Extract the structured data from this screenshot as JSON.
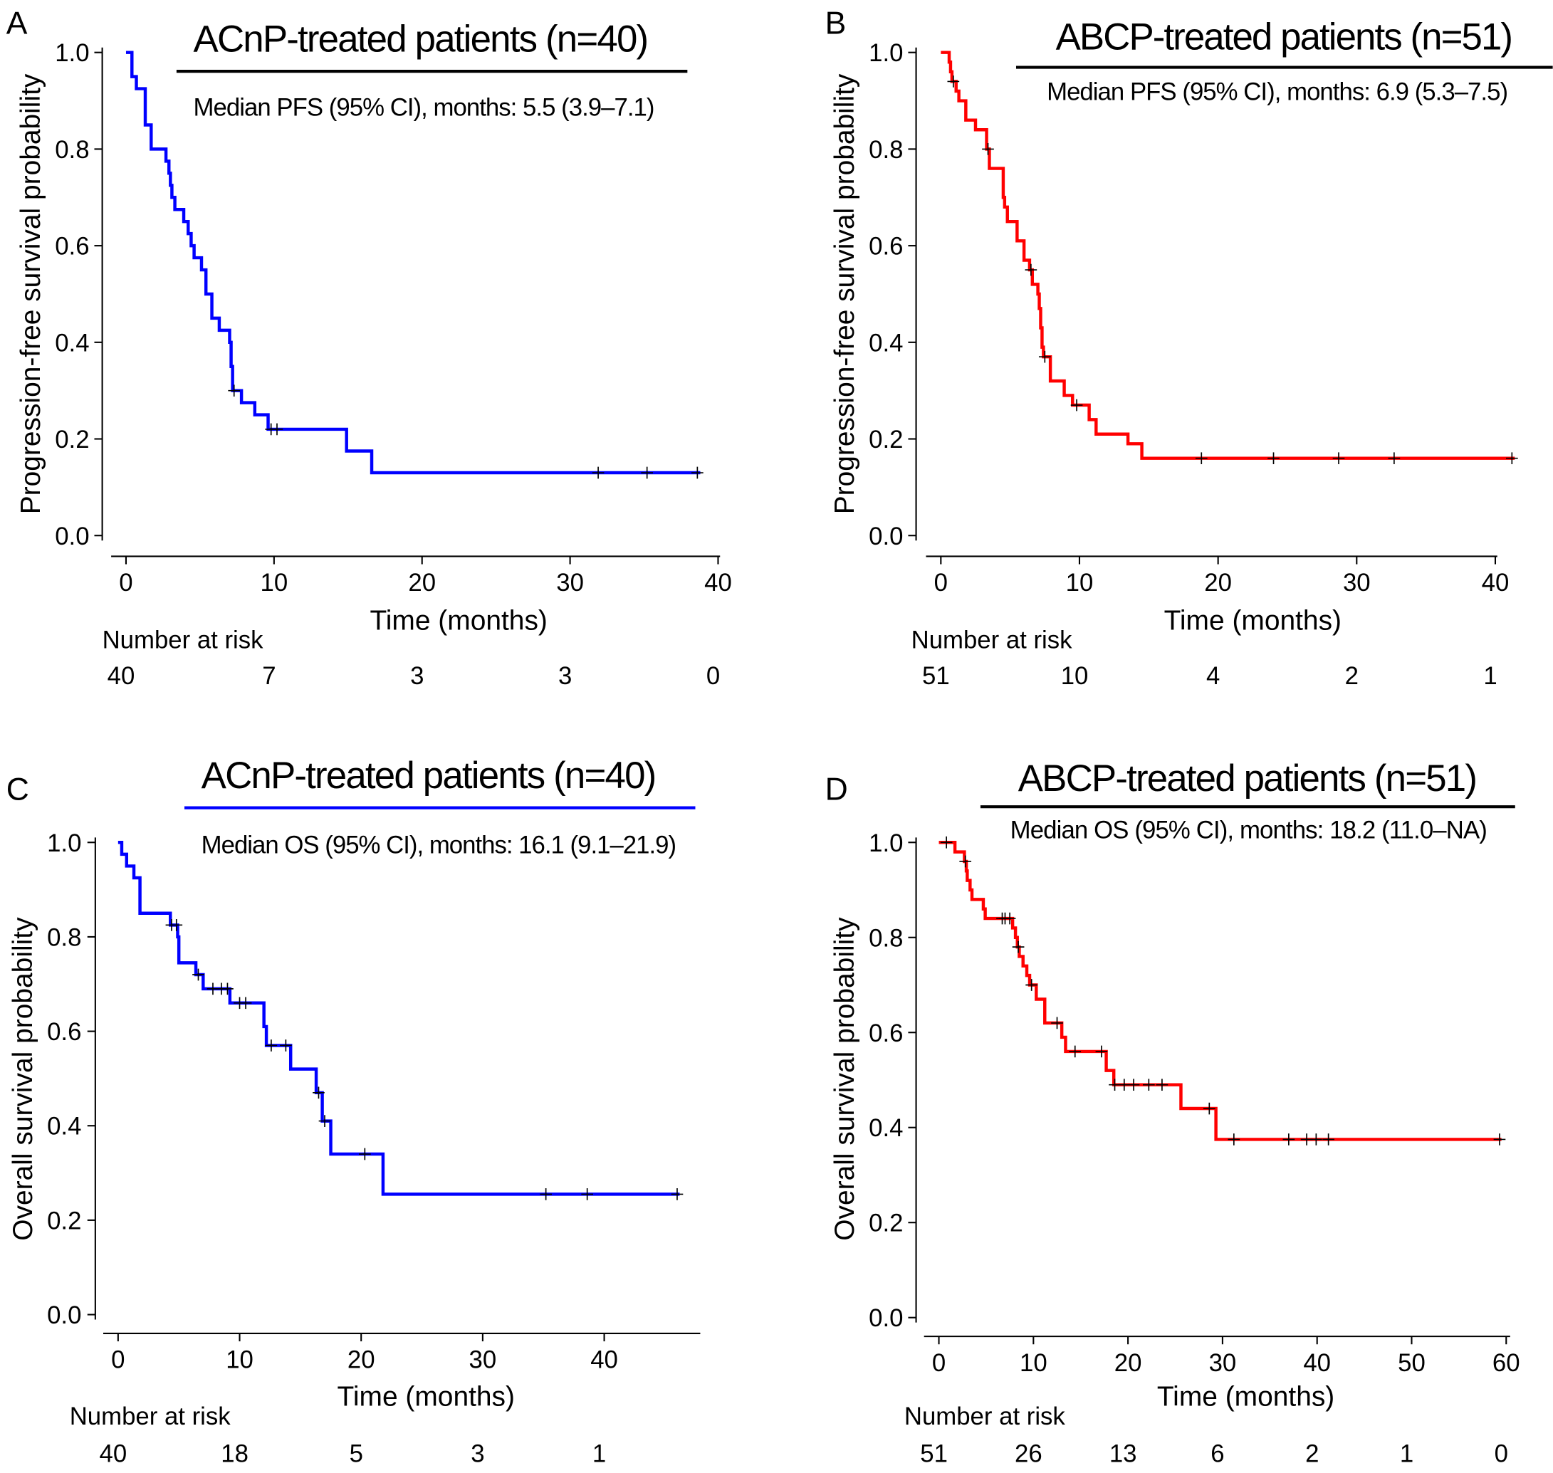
{
  "chart_data": [
    {
      "type": "line",
      "panel_letter": "A",
      "title": "ACnP-treated patients (n=40)",
      "annotation": "Median PFS (95% CI), months: 5.5 (3.9–7.1)",
      "ylabel": "Progression-free survival probability",
      "xlabel": "Time (months)",
      "color": "#0000ff",
      "title_rule_color": "#000000",
      "xticks": [
        0,
        10,
        20,
        30,
        40
      ],
      "yticks": [
        "0.0",
        "0.2",
        "0.4",
        "0.6",
        "0.8",
        "1.0"
      ],
      "xlim": [
        0,
        40
      ],
      "ylim": [
        0,
        1
      ],
      "steps": [
        [
          0,
          1.0
        ],
        [
          0.4,
          0.95
        ],
        [
          0.7,
          0.925
        ],
        [
          1.3,
          0.85
        ],
        [
          1.7,
          0.8
        ],
        [
          2.7,
          0.775
        ],
        [
          2.9,
          0.75
        ],
        [
          3.0,
          0.725
        ],
        [
          3.1,
          0.7
        ],
        [
          3.3,
          0.675
        ],
        [
          3.9,
          0.65
        ],
        [
          4.2,
          0.625
        ],
        [
          4.4,
          0.6
        ],
        [
          4.6,
          0.575
        ],
        [
          5.1,
          0.55
        ],
        [
          5.4,
          0.5
        ],
        [
          5.8,
          0.45
        ],
        [
          6.3,
          0.425
        ],
        [
          7.0,
          0.4
        ],
        [
          7.1,
          0.35
        ],
        [
          7.2,
          0.3
        ],
        [
          7.8,
          0.275
        ],
        [
          8.7,
          0.25
        ],
        [
          9.6,
          0.22
        ],
        [
          14.9,
          0.175
        ],
        [
          16.6,
          0.13
        ]
      ],
      "censored": [
        7.3,
        9.8,
        10.2,
        31.9,
        35.2,
        38.6
      ],
      "end_time": 38.8,
      "risk_label": "Number at risk",
      "risk_times": [
        0,
        10,
        20,
        30,
        40
      ],
      "risk_values": [
        "40",
        "7",
        "3",
        "3",
        "0"
      ]
    },
    {
      "type": "line",
      "panel_letter": "B",
      "title": "ABCP-treated patients (n=51)",
      "annotation": "Median PFS (95% CI), months: 6.9 (5.3–7.5)",
      "ylabel": "Progression-free survival probability",
      "xlabel": "Time (months)",
      "color": "#ff0000",
      "title_rule_color": "#000000",
      "xticks": [
        0,
        10,
        20,
        30,
        40
      ],
      "yticks": [
        "0.0",
        "0.2",
        "0.4",
        "0.6",
        "0.8",
        "1.0"
      ],
      "xlim": [
        0,
        40
      ],
      "ylim": [
        0,
        1
      ],
      "steps": [
        [
          0,
          1.0
        ],
        [
          0.6,
          0.98
        ],
        [
          0.7,
          0.96
        ],
        [
          0.8,
          0.94
        ],
        [
          1.1,
          0.92
        ],
        [
          1.3,
          0.9
        ],
        [
          1.8,
          0.86
        ],
        [
          2.5,
          0.84
        ],
        [
          3.3,
          0.8
        ],
        [
          3.5,
          0.76
        ],
        [
          4.5,
          0.7
        ],
        [
          4.6,
          0.68
        ],
        [
          4.8,
          0.65
        ],
        [
          5.5,
          0.61
        ],
        [
          6.0,
          0.57
        ],
        [
          6.4,
          0.55
        ],
        [
          6.6,
          0.52
        ],
        [
          7.0,
          0.5
        ],
        [
          7.1,
          0.47
        ],
        [
          7.2,
          0.43
        ],
        [
          7.3,
          0.39
        ],
        [
          7.4,
          0.37
        ],
        [
          7.9,
          0.32
        ],
        [
          8.9,
          0.29
        ],
        [
          9.5,
          0.27
        ],
        [
          10.7,
          0.24
        ],
        [
          11.2,
          0.21
        ],
        [
          13.5,
          0.19
        ],
        [
          14.5,
          0.16
        ]
      ],
      "censored": [
        0.9,
        3.4,
        6.5,
        7.5,
        9.8,
        18.8,
        24.0,
        28.7,
        32.7,
        41.2
      ],
      "end_time": 41.4,
      "risk_label": "Number at risk",
      "risk_times": [
        0,
        10,
        20,
        30,
        40
      ],
      "risk_values": [
        "51",
        "10",
        "4",
        "2",
        "1"
      ]
    },
    {
      "type": "line",
      "panel_letter": "C",
      "title": "ACnP-treated patients (n=40)",
      "annotation": "Median OS (95% CI), months: 16.1 (9.1–21.9)",
      "ylabel": "Overall survival probability",
      "xlabel": "Time (months)",
      "color": "#0000ff",
      "title_rule_color": "#0000ff",
      "xticks": [
        0,
        10,
        20,
        30,
        40
      ],
      "yticks": [
        "0.0",
        "0.2",
        "0.4",
        "0.6",
        "0.8",
        "1.0"
      ],
      "xlim": [
        0,
        47
      ],
      "ylim": [
        0,
        1
      ],
      "steps": [
        [
          0,
          1.0
        ],
        [
          0.3,
          0.975
        ],
        [
          0.7,
          0.95
        ],
        [
          1.3,
          0.925
        ],
        [
          1.8,
          0.85
        ],
        [
          4.3,
          0.825
        ],
        [
          4.9,
          0.8
        ],
        [
          5.0,
          0.745
        ],
        [
          6.4,
          0.72
        ],
        [
          7.0,
          0.69
        ],
        [
          9.2,
          0.66
        ],
        [
          12.0,
          0.61
        ],
        [
          12.2,
          0.57
        ],
        [
          14.2,
          0.52
        ],
        [
          16.3,
          0.47
        ],
        [
          16.8,
          0.41
        ],
        [
          17.5,
          0.34
        ],
        [
          21.8,
          0.255
        ]
      ],
      "censored": [
        4.4,
        4.8,
        6.6,
        7.8,
        8.5,
        9.0,
        10.0,
        10.5,
        12.6,
        13.8,
        16.5,
        17.0,
        20.3,
        35.2,
        38.6,
        46.0
      ],
      "end_time": 46.2,
      "risk_label": "Number at risk",
      "risk_times": [
        0,
        10,
        20,
        30,
        40
      ],
      "risk_values": [
        "40",
        "18",
        "5",
        "3",
        "1"
      ]
    },
    {
      "type": "line",
      "panel_letter": "D",
      "title": "ABCP-treated patients (n=51)",
      "annotation": "Median OS (95% CI), months: 18.2 (11.0–NA)",
      "ylabel": "Overall survival probability",
      "xlabel": "Time (months)",
      "color": "#ff0000",
      "title_rule_color": "#000000",
      "xticks": [
        0,
        10,
        20,
        30,
        40,
        50,
        60
      ],
      "yticks": [
        "0.0",
        "0.2",
        "0.4",
        "0.6",
        "0.8",
        "1.0"
      ],
      "xlim": [
        0,
        60
      ],
      "ylim": [
        0,
        1
      ],
      "steps": [
        [
          0,
          1.0
        ],
        [
          1.7,
          0.98
        ],
        [
          2.7,
          0.96
        ],
        [
          2.9,
          0.94
        ],
        [
          3.0,
          0.92
        ],
        [
          3.3,
          0.9
        ],
        [
          3.5,
          0.88
        ],
        [
          4.7,
          0.86
        ],
        [
          4.9,
          0.84
        ],
        [
          7.8,
          0.82
        ],
        [
          8.1,
          0.8
        ],
        [
          8.3,
          0.78
        ],
        [
          8.5,
          0.76
        ],
        [
          8.9,
          0.74
        ],
        [
          9.3,
          0.72
        ],
        [
          9.6,
          0.7
        ],
        [
          10.3,
          0.67
        ],
        [
          11.2,
          0.62
        ],
        [
          13.0,
          0.59
        ],
        [
          13.4,
          0.56
        ],
        [
          17.7,
          0.52
        ],
        [
          18.5,
          0.49
        ],
        [
          25.6,
          0.44
        ],
        [
          29.3,
          0.375
        ]
      ],
      "censored": [
        0.8,
        2.8,
        6.7,
        7.0,
        7.5,
        8.4,
        9.8,
        12.5,
        14.4,
        17.2,
        18.6,
        19.6,
        20.6,
        22.2,
        23.6,
        28.6,
        31.2,
        37.0,
        38.9,
        39.9,
        41.2,
        59.3
      ],
      "end_time": 59.5,
      "risk_label": "Number at risk",
      "risk_times": [
        0,
        10,
        20,
        30,
        40,
        50,
        60
      ],
      "risk_values": [
        "51",
        "26",
        "13",
        "6",
        "2",
        "1",
        "0"
      ]
    }
  ]
}
